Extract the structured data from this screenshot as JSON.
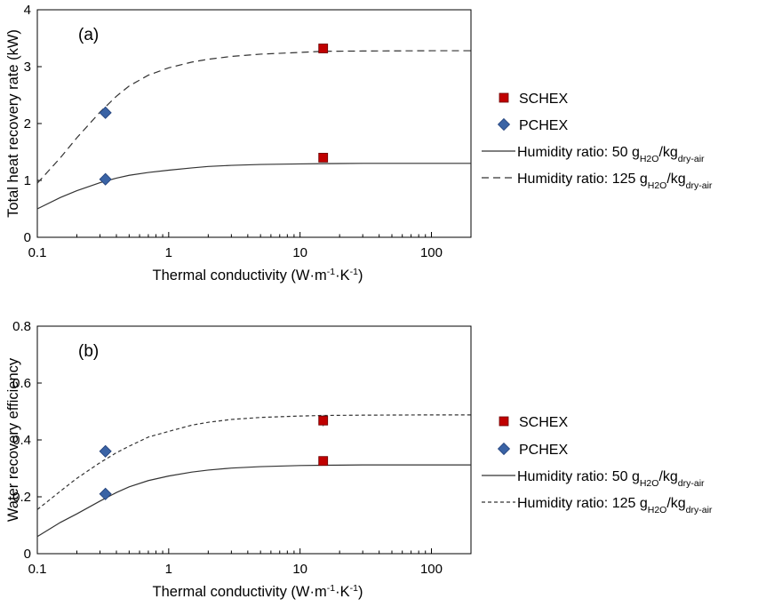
{
  "chart_data": [
    {
      "type": "scatter",
      "panel_label": "(a)",
      "ylabel": "Total heat recovery rate (kW)",
      "xlabel": {
        "base": "Thermal conductivity (W·m",
        "sup1": "-1",
        "mid": "·K",
        "sup2": "-1",
        "end": ")"
      },
      "x_scale": "log",
      "xlim": [
        0.1,
        200
      ],
      "ylim": [
        0,
        4
      ],
      "x_ticks": [
        0.1,
        1,
        10,
        100
      ],
      "x_tick_labels": [
        "0.1",
        "1",
        "10",
        "100"
      ],
      "y_ticks": [
        0,
        1,
        2,
        3,
        4
      ],
      "y_tick_labels": [
        "0",
        "1",
        "2",
        "3",
        "4"
      ],
      "grid": false,
      "legend_position": "right",
      "points": [
        {
          "series": "SCHEX",
          "marker": "square",
          "color": "#c00000",
          "x": 15,
          "y": 3.32
        },
        {
          "series": "SCHEX",
          "marker": "square",
          "color": "#c00000",
          "x": 15,
          "y": 1.4
        },
        {
          "series": "PCHEX",
          "marker": "diamond",
          "color": "#3a63a5",
          "x": 0.33,
          "y": 2.19
        },
        {
          "series": "PCHEX",
          "marker": "diamond",
          "color": "#3a63a5",
          "x": 0.33,
          "y": 1.02
        }
      ],
      "lines": [
        {
          "series": "humidity-50",
          "style": "solid",
          "x": [
            0.1,
            0.15,
            0.2,
            0.3,
            0.4,
            0.5,
            0.7,
            1,
            1.5,
            2,
            3,
            5,
            10,
            15,
            30,
            100,
            200
          ],
          "y": [
            0.5,
            0.7,
            0.82,
            0.96,
            1.04,
            1.09,
            1.14,
            1.18,
            1.22,
            1.245,
            1.265,
            1.28,
            1.29,
            1.295,
            1.3,
            1.3,
            1.3
          ]
        },
        {
          "series": "humidity-125",
          "style": "dashed",
          "x": [
            0.1,
            0.15,
            0.2,
            0.3,
            0.4,
            0.5,
            0.7,
            1,
            1.5,
            2,
            3,
            5,
            10,
            15,
            30,
            100,
            200
          ],
          "y": [
            0.95,
            1.4,
            1.75,
            2.2,
            2.48,
            2.66,
            2.85,
            2.98,
            3.08,
            3.13,
            3.18,
            3.22,
            3.25,
            3.27,
            3.275,
            3.28,
            3.28
          ]
        }
      ],
      "legend": [
        {
          "key": "SCHEX",
          "text": "SCHEX"
        },
        {
          "key": "PCHEX",
          "text": "PCHEX"
        },
        {
          "key": "humidity-50",
          "text": "Humidity ratio: 50 g",
          "sub1": "H2O",
          "mid": "/kg",
          "sub2": "dry-air"
        },
        {
          "key": "humidity-125",
          "text": "Humidity ratio: 125 g",
          "sub1": "H2O",
          "mid": "/kg",
          "sub2": "dry-air"
        }
      ]
    },
    {
      "type": "scatter",
      "panel_label": "(b)",
      "ylabel": "Water recovery efficiency",
      "xlabel": {
        "base": "Thermal conductivity (W·m",
        "sup1": "-1",
        "mid": "·K",
        "sup2": "-1",
        "end": ")"
      },
      "x_scale": "log",
      "xlim": [
        0.1,
        200
      ],
      "ylim": [
        0,
        0.8
      ],
      "x_ticks": [
        0.1,
        1,
        10,
        100
      ],
      "x_tick_labels": [
        "0.1",
        "1",
        "10",
        "100"
      ],
      "y_ticks": [
        0,
        0.2,
        0.4,
        0.6,
        0.8
      ],
      "y_tick_labels": [
        "0",
        "0.2",
        "0.4",
        "0.6",
        "0.8"
      ],
      "grid": false,
      "legend_position": "right",
      "points": [
        {
          "series": "SCHEX",
          "marker": "square",
          "color": "#c00000",
          "x": 15,
          "y": 0.468,
          "err": 0.02
        },
        {
          "series": "SCHEX",
          "marker": "square",
          "color": "#c00000",
          "x": 15,
          "y": 0.326
        },
        {
          "series": "PCHEX",
          "marker": "diamond",
          "color": "#3a63a5",
          "x": 0.33,
          "y": 0.36
        },
        {
          "series": "PCHEX",
          "marker": "diamond",
          "color": "#3a63a5",
          "x": 0.33,
          "y": 0.21
        }
      ],
      "lines": [
        {
          "series": "humidity-50",
          "style": "solid",
          "x": [
            0.1,
            0.15,
            0.2,
            0.3,
            0.4,
            0.5,
            0.7,
            1,
            1.5,
            2,
            3,
            5,
            10,
            15,
            30,
            100,
            200
          ],
          "y": [
            0.06,
            0.11,
            0.14,
            0.185,
            0.215,
            0.235,
            0.257,
            0.273,
            0.287,
            0.294,
            0.301,
            0.306,
            0.31,
            0.311,
            0.312,
            0.312,
            0.312
          ]
        },
        {
          "series": "humidity-125",
          "style": "dotted",
          "x": [
            0.1,
            0.15,
            0.2,
            0.3,
            0.4,
            0.5,
            0.7,
            1,
            1.5,
            2,
            3,
            5,
            10,
            15,
            30,
            100,
            200
          ],
          "y": [
            0.155,
            0.22,
            0.265,
            0.32,
            0.355,
            0.378,
            0.41,
            0.43,
            0.452,
            0.462,
            0.472,
            0.479,
            0.484,
            0.486,
            0.487,
            0.488,
            0.488
          ]
        }
      ],
      "legend": [
        {
          "key": "SCHEX",
          "text": "SCHEX"
        },
        {
          "key": "PCHEX",
          "text": "PCHEX"
        },
        {
          "key": "humidity-50",
          "text": "Humidity ratio: 50  g",
          "sub1": "H2O",
          "mid": "/kg",
          "sub2": "dry-air"
        },
        {
          "key": "humidity-125",
          "text": "Humidity ratio: 125  g",
          "sub1": "H2O",
          "mid": "/kg",
          "sub2": "dry-air"
        }
      ]
    }
  ]
}
